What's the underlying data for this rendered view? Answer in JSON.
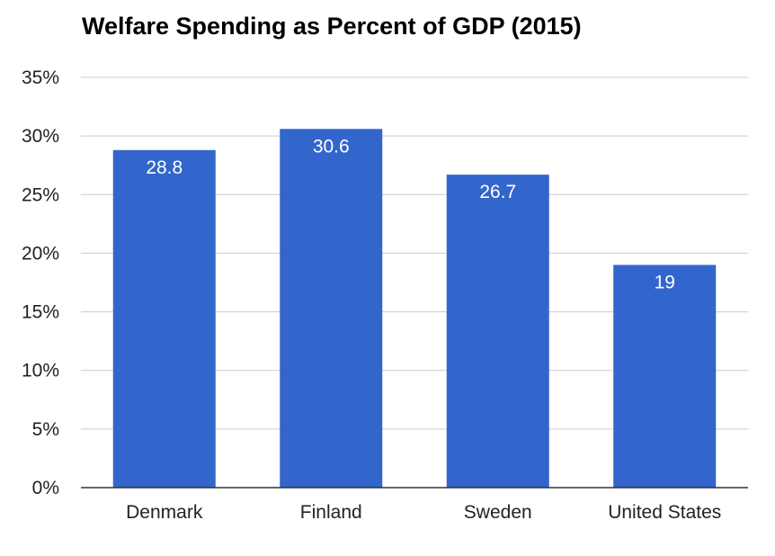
{
  "chart_data": {
    "type": "bar",
    "title": "Welfare Spending as Percent of GDP (2015)",
    "categories": [
      "Denmark",
      "Finland",
      "Sweden",
      "United States"
    ],
    "values": [
      28.8,
      30.6,
      26.7,
      19
    ],
    "data_labels": [
      "28.8",
      "30.6",
      "26.7",
      "19"
    ],
    "ylim": [
      0,
      35
    ],
    "yticks": [
      0,
      5,
      10,
      15,
      20,
      25,
      30,
      35
    ],
    "ytick_labels": [
      "0%",
      "5%",
      "10%",
      "15%",
      "20%",
      "25%",
      "30%",
      "35%"
    ],
    "grid": true,
    "legend": "none",
    "colors": {
      "bar": "#3366cc",
      "grid": "#cccccc",
      "axis": "#333333"
    }
  }
}
